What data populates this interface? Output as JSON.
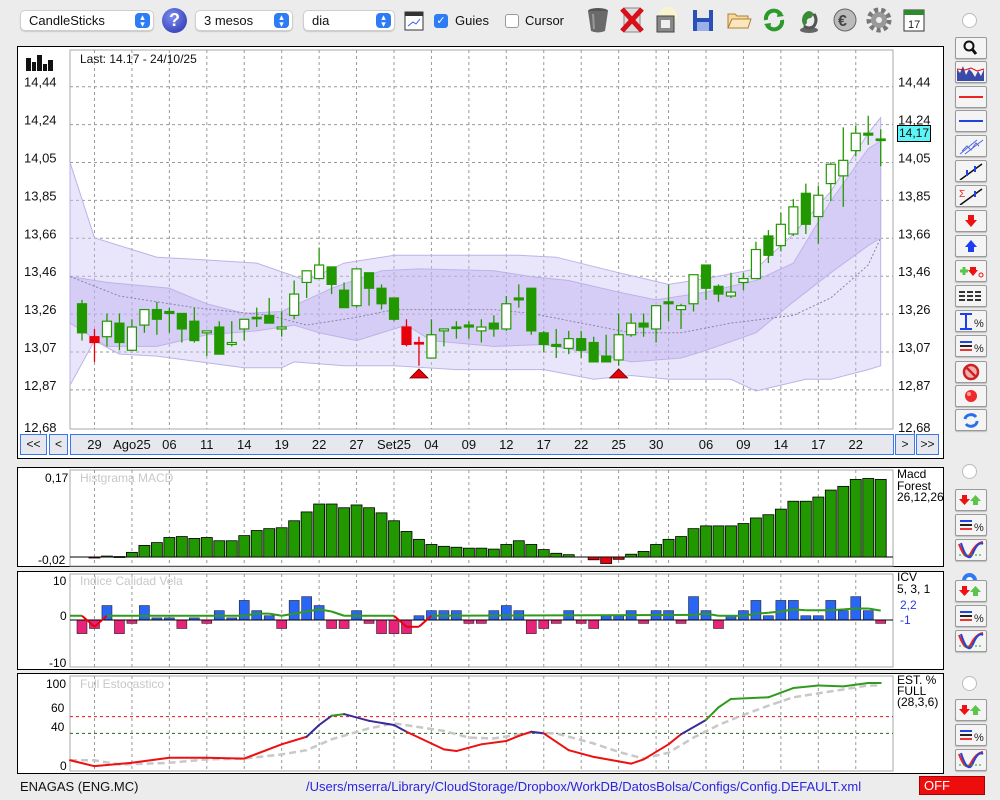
{
  "toolbar": {
    "chart_type": "CandleSticks",
    "period": "3 mesos",
    "interval": "dia",
    "guides_label": "Guies",
    "guides_checked": true,
    "cursor_label": "Cursor",
    "cursor_checked": false,
    "icons": [
      "help-icon",
      "chart-window-icon",
      "trash-icon",
      "delete-icon",
      "jar-icon",
      "save-icon",
      "folder-icon",
      "refresh-icon",
      "sync-icon",
      "euro-icon",
      "gear-icon",
      "calendar-icon"
    ],
    "calendar_day": "17"
  },
  "main_chart": {
    "last_label": "Last: 14.17 - 24/10/25",
    "current_price": "14,17",
    "y_ticks": [
      "14,44",
      "14,24",
      "14,05",
      "13,85",
      "13,66",
      "13,46",
      "13,26",
      "13,07",
      "12,87",
      "12,68"
    ],
    "nav": {
      "first": "<<",
      "prev": "<",
      "next": ">",
      "last": ">>"
    },
    "colors": {
      "up": "#ffffff",
      "down": "#229800",
      "alert": "#e8000b",
      "band": "#d9d2f5"
    }
  },
  "macd_panel": {
    "title": "Histgrama MACD",
    "label_lines": [
      "Macd",
      "Forest",
      "26,12,26"
    ],
    "y_max": "0,17",
    "y_min": "-0,02"
  },
  "icv_panel": {
    "title": "Indice Calidad Vela",
    "label_lines": [
      "ICV",
      "5, 3, 1"
    ],
    "value_hi": "2,2",
    "value_lo": "-1",
    "y_max": "10",
    "y_zero": "0",
    "y_min": "-10"
  },
  "stoch_panel": {
    "title": "Full Estocastico",
    "label_lines": [
      "EST. %",
      "FULL",
      "(28,3,6)"
    ],
    "y_labels": [
      "100",
      "60",
      "40",
      "0"
    ]
  },
  "footer": {
    "symbol": "ENAGAS (ENG.MC)",
    "config_path": "/Users/mserra/Library/CloudStorage/Dropbox/WorkDB/DatosBolsa/Configs/Config.DEFAULT.xml",
    "status": "OFF"
  },
  "chart_data": {
    "type": "candlestick",
    "title": "ENAGAS (ENG.MC)",
    "ylim": [
      12.68,
      14.44
    ],
    "x_labels": [
      {
        "i": 1,
        "t": "29"
      },
      {
        "i": 4,
        "t": "Ago25"
      },
      {
        "i": 7,
        "t": "06"
      },
      {
        "i": 10,
        "t": "11"
      },
      {
        "i": 13,
        "t": "14"
      },
      {
        "i": 16,
        "t": "19"
      },
      {
        "i": 19,
        "t": "22"
      },
      {
        "i": 22,
        "t": "27"
      },
      {
        "i": 25,
        "t": "Set25"
      },
      {
        "i": 28,
        "t": "04"
      },
      {
        "i": 31,
        "t": "09"
      },
      {
        "i": 34,
        "t": "12"
      },
      {
        "i": 37,
        "t": "17"
      },
      {
        "i": 40,
        "t": "22"
      },
      {
        "i": 43,
        "t": "25"
      },
      {
        "i": 46,
        "t": "30"
      },
      {
        "i": 50,
        "t": "06"
      },
      {
        "i": 53,
        "t": "09"
      },
      {
        "i": 56,
        "t": "14"
      },
      {
        "i": 59,
        "t": "17"
      },
      {
        "i": 62,
        "t": "22"
      }
    ],
    "extra_grid_index": [
      47
    ],
    "candles_ohlc_style": [
      [
        13.32,
        13.34,
        13.13,
        13.17,
        "f"
      ],
      [
        13.15,
        13.19,
        13.02,
        13.12,
        "r"
      ],
      [
        13.15,
        13.27,
        13.1,
        13.23,
        "h"
      ],
      [
        13.22,
        13.27,
        13.08,
        13.12,
        "f"
      ],
      [
        13.08,
        13.24,
        13.08,
        13.2,
        "h"
      ],
      [
        13.21,
        13.29,
        13.17,
        13.29,
        "h"
      ],
      [
        13.29,
        13.33,
        13.16,
        13.24,
        "f"
      ],
      [
        13.28,
        13.3,
        13.17,
        13.27,
        "f"
      ],
      [
        13.27,
        13.27,
        13.12,
        13.19,
        "f"
      ],
      [
        13.23,
        13.3,
        13.12,
        13.13,
        "f"
      ],
      [
        13.17,
        13.18,
        13.05,
        13.18,
        "h"
      ],
      [
        13.2,
        13.23,
        13.06,
        13.06,
        "f"
      ],
      [
        13.11,
        13.23,
        13.1,
        13.12,
        "h"
      ],
      [
        13.19,
        13.24,
        13.13,
        13.24,
        "h"
      ],
      [
        13.25,
        13.3,
        13.2,
        13.25,
        "f"
      ],
      [
        13.26,
        13.35,
        13.22,
        13.22,
        "f"
      ],
      [
        13.19,
        13.28,
        13.15,
        13.2,
        "h"
      ],
      [
        13.26,
        13.44,
        13.24,
        13.37,
        "h"
      ],
      [
        13.43,
        13.49,
        13.35,
        13.49,
        "h"
      ],
      [
        13.45,
        13.61,
        13.45,
        13.52,
        "h"
      ],
      [
        13.51,
        13.51,
        13.37,
        13.42,
        "f"
      ],
      [
        13.39,
        13.43,
        13.3,
        13.3,
        "f"
      ],
      [
        13.31,
        13.5,
        13.3,
        13.5,
        "h"
      ],
      [
        13.48,
        13.48,
        13.31,
        13.4,
        "f"
      ],
      [
        13.4,
        13.42,
        13.29,
        13.32,
        "f"
      ],
      [
        13.35,
        13.35,
        13.23,
        13.24,
        "f"
      ],
      [
        13.2,
        13.24,
        13.1,
        13.11,
        "r"
      ],
      [
        13.12,
        13.15,
        13.0,
        13.12,
        "r"
      ],
      [
        13.04,
        13.24,
        13.04,
        13.16,
        "h"
      ],
      [
        13.18,
        13.19,
        13.1,
        13.19,
        "h"
      ],
      [
        13.2,
        13.23,
        13.14,
        13.2,
        "f"
      ],
      [
        13.21,
        13.23,
        13.14,
        13.2,
        "f"
      ],
      [
        13.18,
        13.24,
        13.12,
        13.2,
        "h"
      ],
      [
        13.22,
        13.26,
        13.15,
        13.19,
        "f"
      ],
      [
        13.19,
        13.36,
        13.18,
        13.32,
        "h"
      ],
      [
        13.35,
        13.42,
        13.3,
        13.34,
        "f"
      ],
      [
        13.4,
        13.4,
        13.16,
        13.18,
        "f"
      ],
      [
        13.17,
        13.18,
        13.07,
        13.11,
        "f"
      ],
      [
        13.11,
        13.19,
        13.04,
        13.1,
        "f"
      ],
      [
        13.09,
        13.18,
        13.06,
        13.14,
        "h"
      ],
      [
        13.14,
        13.18,
        13.04,
        13.08,
        "f"
      ],
      [
        13.12,
        13.15,
        13.02,
        13.02,
        "f"
      ],
      [
        13.05,
        13.16,
        13.02,
        13.02,
        "f"
      ],
      [
        13.03,
        13.27,
        13.0,
        13.16,
        "h"
      ],
      [
        13.16,
        13.27,
        13.15,
        13.22,
        "h"
      ],
      [
        13.22,
        13.27,
        13.15,
        13.2,
        "f"
      ],
      [
        13.19,
        13.31,
        13.12,
        13.31,
        "h"
      ],
      [
        13.33,
        13.42,
        13.23,
        13.32,
        "f"
      ],
      [
        13.29,
        13.32,
        13.19,
        13.31,
        "h"
      ],
      [
        13.32,
        13.47,
        13.28,
        13.47,
        "h"
      ],
      [
        13.52,
        13.52,
        13.34,
        13.4,
        "f"
      ],
      [
        13.41,
        13.42,
        13.33,
        13.37,
        "f"
      ],
      [
        13.36,
        13.48,
        13.35,
        13.38,
        "h"
      ],
      [
        13.43,
        13.48,
        13.39,
        13.45,
        "h"
      ],
      [
        13.45,
        13.64,
        13.45,
        13.6,
        "h"
      ],
      [
        13.67,
        13.7,
        13.53,
        13.57,
        "f"
      ],
      [
        13.62,
        13.79,
        13.59,
        13.73,
        "h"
      ],
      [
        13.68,
        13.86,
        13.67,
        13.82,
        "h"
      ],
      [
        13.89,
        13.94,
        13.68,
        13.73,
        "f"
      ],
      [
        13.77,
        13.93,
        13.63,
        13.88,
        "h"
      ],
      [
        13.94,
        14.05,
        13.85,
        14.04,
        "h"
      ],
      [
        13.98,
        14.23,
        13.82,
        14.06,
        "h"
      ],
      [
        14.11,
        14.24,
        14.08,
        14.2,
        "h"
      ],
      [
        14.2,
        14.29,
        14.14,
        14.19,
        "f"
      ],
      [
        14.17,
        14.22,
        14.03,
        14.17,
        "f"
      ]
    ],
    "signals": [
      {
        "i": 27,
        "type": "buy"
      },
      {
        "i": 43,
        "type": "buy"
      }
    ],
    "bands": {
      "outer_upper": [
        [
          -1,
          14.05
        ],
        [
          1,
          13.66
        ],
        [
          6,
          13.56
        ],
        [
          9,
          13.55
        ],
        [
          14,
          13.53
        ],
        [
          18,
          13.44
        ],
        [
          21,
          13.53
        ],
        [
          25,
          13.57
        ],
        [
          35,
          13.57
        ],
        [
          38,
          13.56
        ],
        [
          43,
          13.48
        ],
        [
          47,
          13.42
        ],
        [
          50,
          13.45
        ],
        [
          54,
          13.5
        ],
        [
          57,
          13.68
        ],
        [
          60,
          13.9
        ],
        [
          63,
          14.2
        ],
        [
          64,
          14.28
        ]
      ],
      "outer_lower": [
        [
          -1,
          12.9
        ],
        [
          1,
          13.13
        ],
        [
          3,
          13.06
        ],
        [
          6,
          13.05
        ],
        [
          13,
          12.99
        ],
        [
          16,
          12.99
        ],
        [
          17,
          13.02
        ],
        [
          21,
          13.0
        ],
        [
          25,
          13.0
        ],
        [
          30,
          12.98
        ],
        [
          37,
          12.98
        ],
        [
          41,
          12.93
        ],
        [
          44,
          12.95
        ],
        [
          47,
          12.93
        ],
        [
          52,
          12.93
        ],
        [
          54,
          12.87
        ],
        [
          58,
          12.93
        ],
        [
          60,
          12.93
        ],
        [
          63,
          12.98
        ],
        [
          64,
          13.0
        ]
      ],
      "inner_upper": [
        [
          -1,
          13.46
        ],
        [
          2,
          13.43
        ],
        [
          7,
          13.4
        ],
        [
          10,
          13.32
        ],
        [
          13,
          13.27
        ],
        [
          16,
          13.28
        ],
        [
          20,
          13.4
        ],
        [
          24,
          13.49
        ],
        [
          27,
          13.5
        ],
        [
          33,
          13.49
        ],
        [
          36,
          13.46
        ],
        [
          39,
          13.44
        ],
        [
          43,
          13.38
        ],
        [
          46,
          13.34
        ],
        [
          50,
          13.38
        ],
        [
          54,
          13.44
        ],
        [
          57,
          13.53
        ],
        [
          60,
          13.85
        ],
        [
          63,
          14.12
        ],
        [
          64,
          14.16
        ]
      ],
      "inner_lower": [
        [
          -1,
          13.22
        ],
        [
          2,
          13.1
        ],
        [
          6,
          13.1
        ],
        [
          10,
          13.16
        ],
        [
          14,
          13.18
        ],
        [
          17,
          13.21
        ],
        [
          19,
          13.17
        ],
        [
          22,
          13.13
        ],
        [
          26,
          13.21
        ],
        [
          28,
          13.13
        ],
        [
          33,
          13.1
        ],
        [
          37,
          13.11
        ],
        [
          42,
          13.05
        ],
        [
          44,
          13.02
        ],
        [
          48,
          13.04
        ],
        [
          50,
          13.08
        ],
        [
          54,
          13.17
        ],
        [
          57,
          13.33
        ],
        [
          60,
          13.48
        ],
        [
          63,
          13.62
        ],
        [
          64,
          13.66
        ]
      ],
      "middle": [
        [
          -1,
          13.46
        ],
        [
          3,
          13.36
        ],
        [
          9,
          13.3
        ],
        [
          15,
          13.26
        ],
        [
          18,
          13.21
        ],
        [
          22,
          13.25
        ],
        [
          25,
          13.29
        ],
        [
          33,
          13.29
        ],
        [
          36,
          13.27
        ],
        [
          40,
          13.22
        ],
        [
          44,
          13.17
        ],
        [
          48,
          13.17
        ],
        [
          52,
          13.22
        ],
        [
          57,
          13.26
        ],
        [
          60,
          13.35
        ],
        [
          63,
          13.52
        ],
        [
          64,
          13.66
        ]
      ]
    },
    "macd_hist": [
      0,
      -0.002,
      0.002,
      0.001,
      0.01,
      0.025,
      0.031,
      0.042,
      0.044,
      0.04,
      0.042,
      0.035,
      0.035,
      0.046,
      0.057,
      0.061,
      0.063,
      0.078,
      0.097,
      0.114,
      0.114,
      0.106,
      0.112,
      0.106,
      0.095,
      0.078,
      0.055,
      0.038,
      0.027,
      0.023,
      0.021,
      0.019,
      0.019,
      0.017,
      0.027,
      0.035,
      0.027,
      0.016,
      0.008,
      0.005,
      0,
      -0.006,
      -0.014,
      -0.005,
      0.006,
      0.012,
      0.027,
      0.038,
      0.044,
      0.061,
      0.067,
      0.067,
      0.067,
      0.072,
      0.084,
      0.091,
      0.103,
      0.12,
      0.12,
      0.129,
      0.144,
      0.152,
      0.167,
      0.169,
      0.167
    ],
    "macd_ylim": [
      -0.02,
      0.17
    ],
    "icv_bars": [
      -3.2,
      -2,
      3.4,
      -3.2,
      -0.8,
      3.4,
      0.5,
      0.5,
      -2,
      0.5,
      -0.8,
      2.2,
      0.5,
      4.6,
      2.2,
      1,
      -2,
      4.6,
      5.5,
      3.4,
      -2,
      -2,
      2.2,
      -0.8,
      -3.2,
      -3.2,
      -3.2,
      1,
      2.2,
      2.2,
      2.2,
      -0.8,
      -0.8,
      2.2,
      3.4,
      2.2,
      -3.2,
      -2,
      -0.8,
      2.2,
      -0.8,
      -2,
      1,
      1,
      2.2,
      -0.8,
      2.2,
      2.2,
      -0.8,
      5.5,
      2.2,
      -2,
      1,
      2.2,
      4.6,
      1,
      4.6,
      4.6,
      1,
      1,
      4.6,
      2.2,
      5.5,
      2.2,
      -0.8
    ],
    "icv_line": [
      [
        -1,
        1
      ],
      [
        0,
        1
      ],
      [
        1,
        -1.6
      ],
      [
        2,
        1
      ],
      [
        13,
        1
      ],
      [
        14,
        1.5
      ],
      [
        15,
        1.5
      ],
      [
        16,
        1
      ],
      [
        17,
        1.5
      ],
      [
        18,
        2
      ],
      [
        19,
        2.5
      ],
      [
        20,
        2
      ],
      [
        21,
        1
      ],
      [
        25,
        1
      ],
      [
        26,
        -1.6
      ],
      [
        27,
        -1.6
      ],
      [
        28,
        1
      ],
      [
        49,
        1.2
      ],
      [
        50,
        1.5
      ],
      [
        51,
        1
      ],
      [
        53,
        1
      ],
      [
        54,
        1.5
      ],
      [
        55,
        1.7
      ],
      [
        56,
        2
      ],
      [
        57,
        2.5
      ],
      [
        58,
        2.3
      ],
      [
        60,
        2.3
      ],
      [
        61,
        2.5
      ],
      [
        62,
        2.7
      ],
      [
        63,
        2.7
      ],
      [
        64,
        2.2
      ]
    ],
    "icv_ylim": [
      -10,
      10
    ],
    "stoch_k": [
      [
        -1,
        8
      ],
      [
        1,
        1
      ],
      [
        4,
        5
      ],
      [
        7,
        11
      ],
      [
        10,
        11
      ],
      [
        13,
        10
      ],
      [
        16,
        27
      ],
      [
        18,
        36
      ],
      [
        19,
        50
      ],
      [
        20,
        61
      ],
      [
        21,
        63
      ],
      [
        23,
        55
      ],
      [
        25,
        50
      ],
      [
        26,
        42
      ],
      [
        29,
        21
      ],
      [
        30,
        19
      ],
      [
        32,
        27
      ],
      [
        34,
        31
      ],
      [
        35,
        37
      ],
      [
        36,
        42
      ],
      [
        37,
        40
      ],
      [
        39,
        20
      ],
      [
        41,
        12
      ],
      [
        44,
        4
      ],
      [
        45,
        9
      ],
      [
        47,
        27
      ],
      [
        48,
        39
      ],
      [
        50,
        56
      ],
      [
        51,
        71
      ],
      [
        52,
        81
      ],
      [
        55,
        83
      ],
      [
        57,
        94
      ],
      [
        59,
        97
      ],
      [
        61,
        96
      ],
      [
        63,
        100
      ],
      [
        64,
        100
      ]
    ],
    "stoch_d": [
      [
        -1,
        8
      ],
      [
        1,
        8
      ],
      [
        3,
        3
      ],
      [
        7,
        5
      ],
      [
        10,
        9
      ],
      [
        13,
        10
      ],
      [
        16,
        15
      ],
      [
        18,
        20
      ],
      [
        20,
        33
      ],
      [
        23,
        46
      ],
      [
        25,
        52
      ],
      [
        29,
        43
      ],
      [
        31,
        35
      ],
      [
        33,
        34
      ],
      [
        36,
        41
      ],
      [
        38,
        40
      ],
      [
        41,
        28
      ],
      [
        43,
        18
      ],
      [
        45,
        10
      ],
      [
        47,
        17
      ],
      [
        49,
        35
      ],
      [
        51,
        50
      ],
      [
        53,
        62
      ],
      [
        55,
        73
      ],
      [
        57,
        83
      ],
      [
        60,
        90
      ],
      [
        63,
        97
      ],
      [
        64,
        97
      ]
    ],
    "stoch_levels": [
      60,
      40
    ],
    "stoch_ylim": [
      0,
      100
    ]
  }
}
